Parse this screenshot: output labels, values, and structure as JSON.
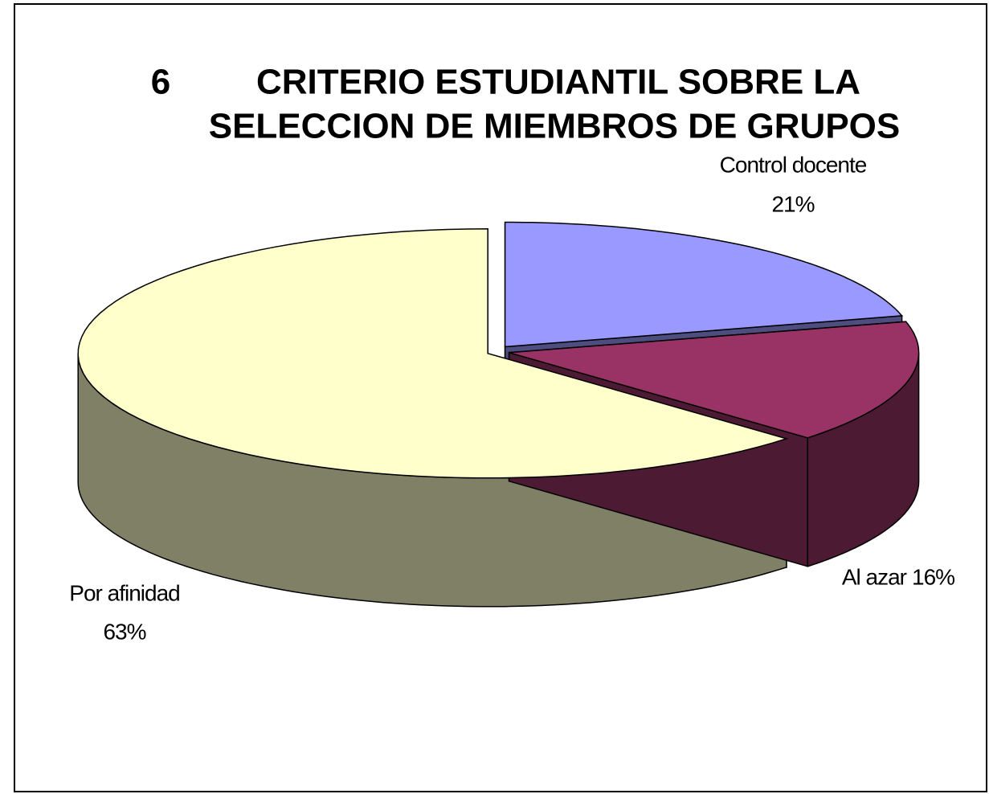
{
  "chart_data": {
    "type": "pie3d",
    "title_number": "6",
    "title": [
      "CRITERIO ESTUDIANTIL SOBRE LA",
      "SELECCION DE MIEMBROS DE GRUPOS"
    ],
    "categories": [
      "Control docente",
      "Al azar",
      "Por afinidad"
    ],
    "values": [
      21,
      16,
      63
    ],
    "value_labels": [
      "21%",
      "16%",
      "63%"
    ],
    "colors": [
      "#9999ff",
      "#993366",
      "#ffffcc"
    ]
  }
}
